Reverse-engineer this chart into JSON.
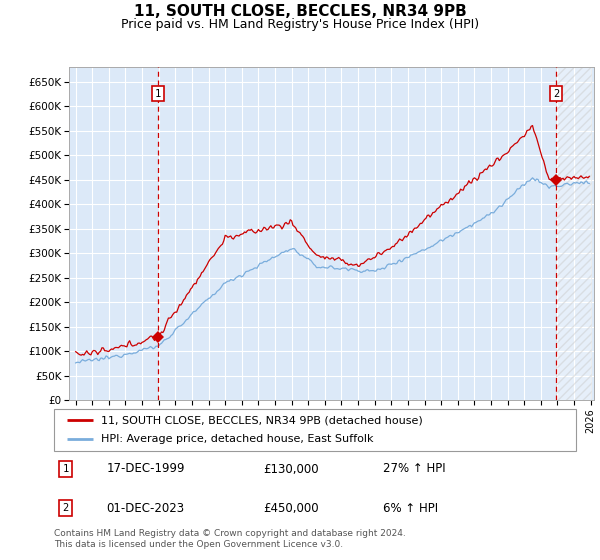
{
  "title": "11, SOUTH CLOSE, BECCLES, NR34 9PB",
  "subtitle": "Price paid vs. HM Land Registry's House Price Index (HPI)",
  "ylim": [
    0,
    680000
  ],
  "yticks": [
    0,
    50000,
    100000,
    150000,
    200000,
    250000,
    300000,
    350000,
    400000,
    450000,
    500000,
    550000,
    600000,
    650000
  ],
  "ytick_labels": [
    "£0",
    "£50K",
    "£100K",
    "£150K",
    "£200K",
    "£250K",
    "£300K",
    "£350K",
    "£400K",
    "£450K",
    "£500K",
    "£550K",
    "£600K",
    "£650K"
  ],
  "plot_bg_color": "#dce9f8",
  "grid_color": "#ffffff",
  "title_fontsize": 11,
  "subtitle_fontsize": 9,
  "legend_label_red": "11, SOUTH CLOSE, BECCLES, NR34 9PB (detached house)",
  "legend_label_blue": "HPI: Average price, detached house, East Suffolk",
  "footnote": "Contains HM Land Registry data © Crown copyright and database right 2024.\nThis data is licensed under the Open Government Licence v3.0.",
  "sale1_date": "17-DEC-1999",
  "sale1_price": "£130,000",
  "sale1_hpi": "27% ↑ HPI",
  "sale2_date": "01-DEC-2023",
  "sale2_price": "£450,000",
  "sale2_hpi": "6% ↑ HPI",
  "marker1_year": 1999.96,
  "marker1_value": 130000,
  "marker2_year": 2023.92,
  "marker2_value": 450000,
  "vline1_year": 1999.96,
  "vline2_year": 2023.92,
  "hpi_color": "#7aaddc",
  "price_color": "#cc0000",
  "hatch_color": "#bbbbbb"
}
